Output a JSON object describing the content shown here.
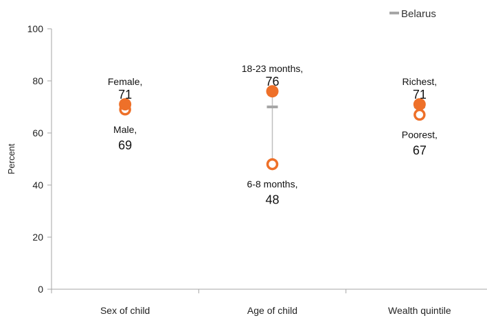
{
  "chart_data": {
    "type": "dot-range",
    "title": "",
    "xlabel": "",
    "ylabel": "Percent",
    "ylim": [
      0,
      100
    ],
    "yticks": [
      0,
      20,
      40,
      60,
      80,
      100
    ],
    "grid": false,
    "legend": {
      "position": "top-right",
      "entries": [
        {
          "name": "Belarus",
          "color": "#a6a6a6"
        }
      ]
    },
    "categories": [
      "Sex of child",
      "Age of child",
      "Wealth quintile"
    ],
    "national_value": 70,
    "groups": [
      {
        "category": "Sex of child",
        "high": {
          "label": "Female,",
          "value": 71
        },
        "low": {
          "label": "Male,",
          "value": 69
        }
      },
      {
        "category": "Age of child",
        "high": {
          "label": "18-23 months,",
          "value": 76
        },
        "low": {
          "label": "6-8 months,",
          "value": 48
        }
      },
      {
        "category": "Wealth quintile",
        "high": {
          "label": "Richest,",
          "value": 71
        },
        "low": {
          "label": "Poorest,",
          "value": 67
        }
      }
    ],
    "colors": {
      "marker": "#ee7029",
      "national": "#a6a6a6",
      "range_line": "#bfbfbf",
      "axis": "#a6a6a6"
    }
  }
}
